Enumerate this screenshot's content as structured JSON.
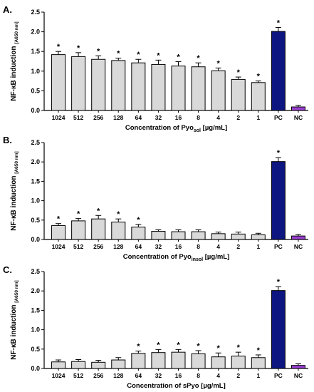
{
  "colors": {
    "sample_bar": "#d9d9d9",
    "pc_bar": "#0d1580",
    "nc_bar": "#9b3fd1",
    "axis": "#000000"
  },
  "chart_data": [
    {
      "type": "bar",
      "panel": "A.",
      "ylabel": "NF-κB induction",
      "ylabel_sub": "[A650 nm]",
      "xlabel_pre": "Concentration of Pyo",
      "xlabel_sub": "sol",
      "xlabel_post": " [µg/mL]",
      "ylim": [
        0,
        2.5
      ],
      "yticks": [
        "0.0",
        "0.5",
        "1.0",
        "1.5",
        "2.0",
        "2.5"
      ],
      "categories": [
        "1024",
        "512",
        "256",
        "128",
        "64",
        "32",
        "16",
        "8",
        "4",
        "2",
        "1",
        "PC",
        "NC"
      ],
      "values": [
        1.42,
        1.37,
        1.3,
        1.27,
        1.21,
        1.17,
        1.13,
        1.11,
        1.01,
        0.79,
        0.71,
        2.01,
        0.09
      ],
      "errors": [
        0.08,
        0.1,
        0.09,
        0.06,
        0.09,
        0.11,
        0.11,
        0.1,
        0.07,
        0.06,
        0.04,
        0.1,
        0.04
      ],
      "significant": [
        true,
        true,
        true,
        true,
        true,
        true,
        true,
        true,
        true,
        true,
        true,
        true,
        false
      ]
    },
    {
      "type": "bar",
      "panel": "B.",
      "ylabel": "NF-κB induction",
      "ylabel_sub": "[A650 nm]",
      "xlabel_pre": "Concentration of Pyo",
      "xlabel_sub": "insol",
      "xlabel_post": " [µg/mL]",
      "ylim": [
        0,
        2.5
      ],
      "yticks": [
        "0.0",
        "0.5",
        "1.0",
        "1.5",
        "2.0",
        "2.5"
      ],
      "categories": [
        "1024",
        "512",
        "256",
        "128",
        "64",
        "32",
        "16",
        "8",
        "4",
        "2",
        "1",
        "PC",
        "NC"
      ],
      "values": [
        0.36,
        0.48,
        0.53,
        0.45,
        0.32,
        0.21,
        0.2,
        0.2,
        0.15,
        0.14,
        0.12,
        2.01,
        0.09
      ],
      "errors": [
        0.05,
        0.06,
        0.09,
        0.08,
        0.07,
        0.04,
        0.05,
        0.05,
        0.04,
        0.05,
        0.04,
        0.1,
        0.04
      ],
      "significant": [
        true,
        true,
        true,
        true,
        true,
        false,
        false,
        false,
        false,
        false,
        false,
        true,
        false
      ]
    },
    {
      "type": "bar",
      "panel": "C.",
      "ylabel": "NF-κB induction",
      "ylabel_sub": "[A650 nm]",
      "xlabel_pre": "Concentration of sPyo",
      "xlabel_sub": "",
      "xlabel_post": " [µg/mL]",
      "ylim": [
        0,
        2.5
      ],
      "yticks": [
        "0.0",
        "0.5",
        "1.0",
        "1.5",
        "2.0",
        "2.5"
      ],
      "categories": [
        "1024",
        "512",
        "256",
        "128",
        "64",
        "32",
        "16",
        "8",
        "4",
        "2",
        "1",
        "PC",
        "NC"
      ],
      "values": [
        0.17,
        0.18,
        0.16,
        0.22,
        0.39,
        0.41,
        0.42,
        0.38,
        0.3,
        0.32,
        0.28,
        2.01,
        0.08
      ],
      "errors": [
        0.05,
        0.05,
        0.05,
        0.06,
        0.06,
        0.08,
        0.07,
        0.08,
        0.1,
        0.1,
        0.07,
        0.1,
        0.04
      ],
      "significant": [
        false,
        false,
        false,
        false,
        true,
        true,
        true,
        true,
        true,
        true,
        true,
        true,
        false
      ]
    }
  ]
}
